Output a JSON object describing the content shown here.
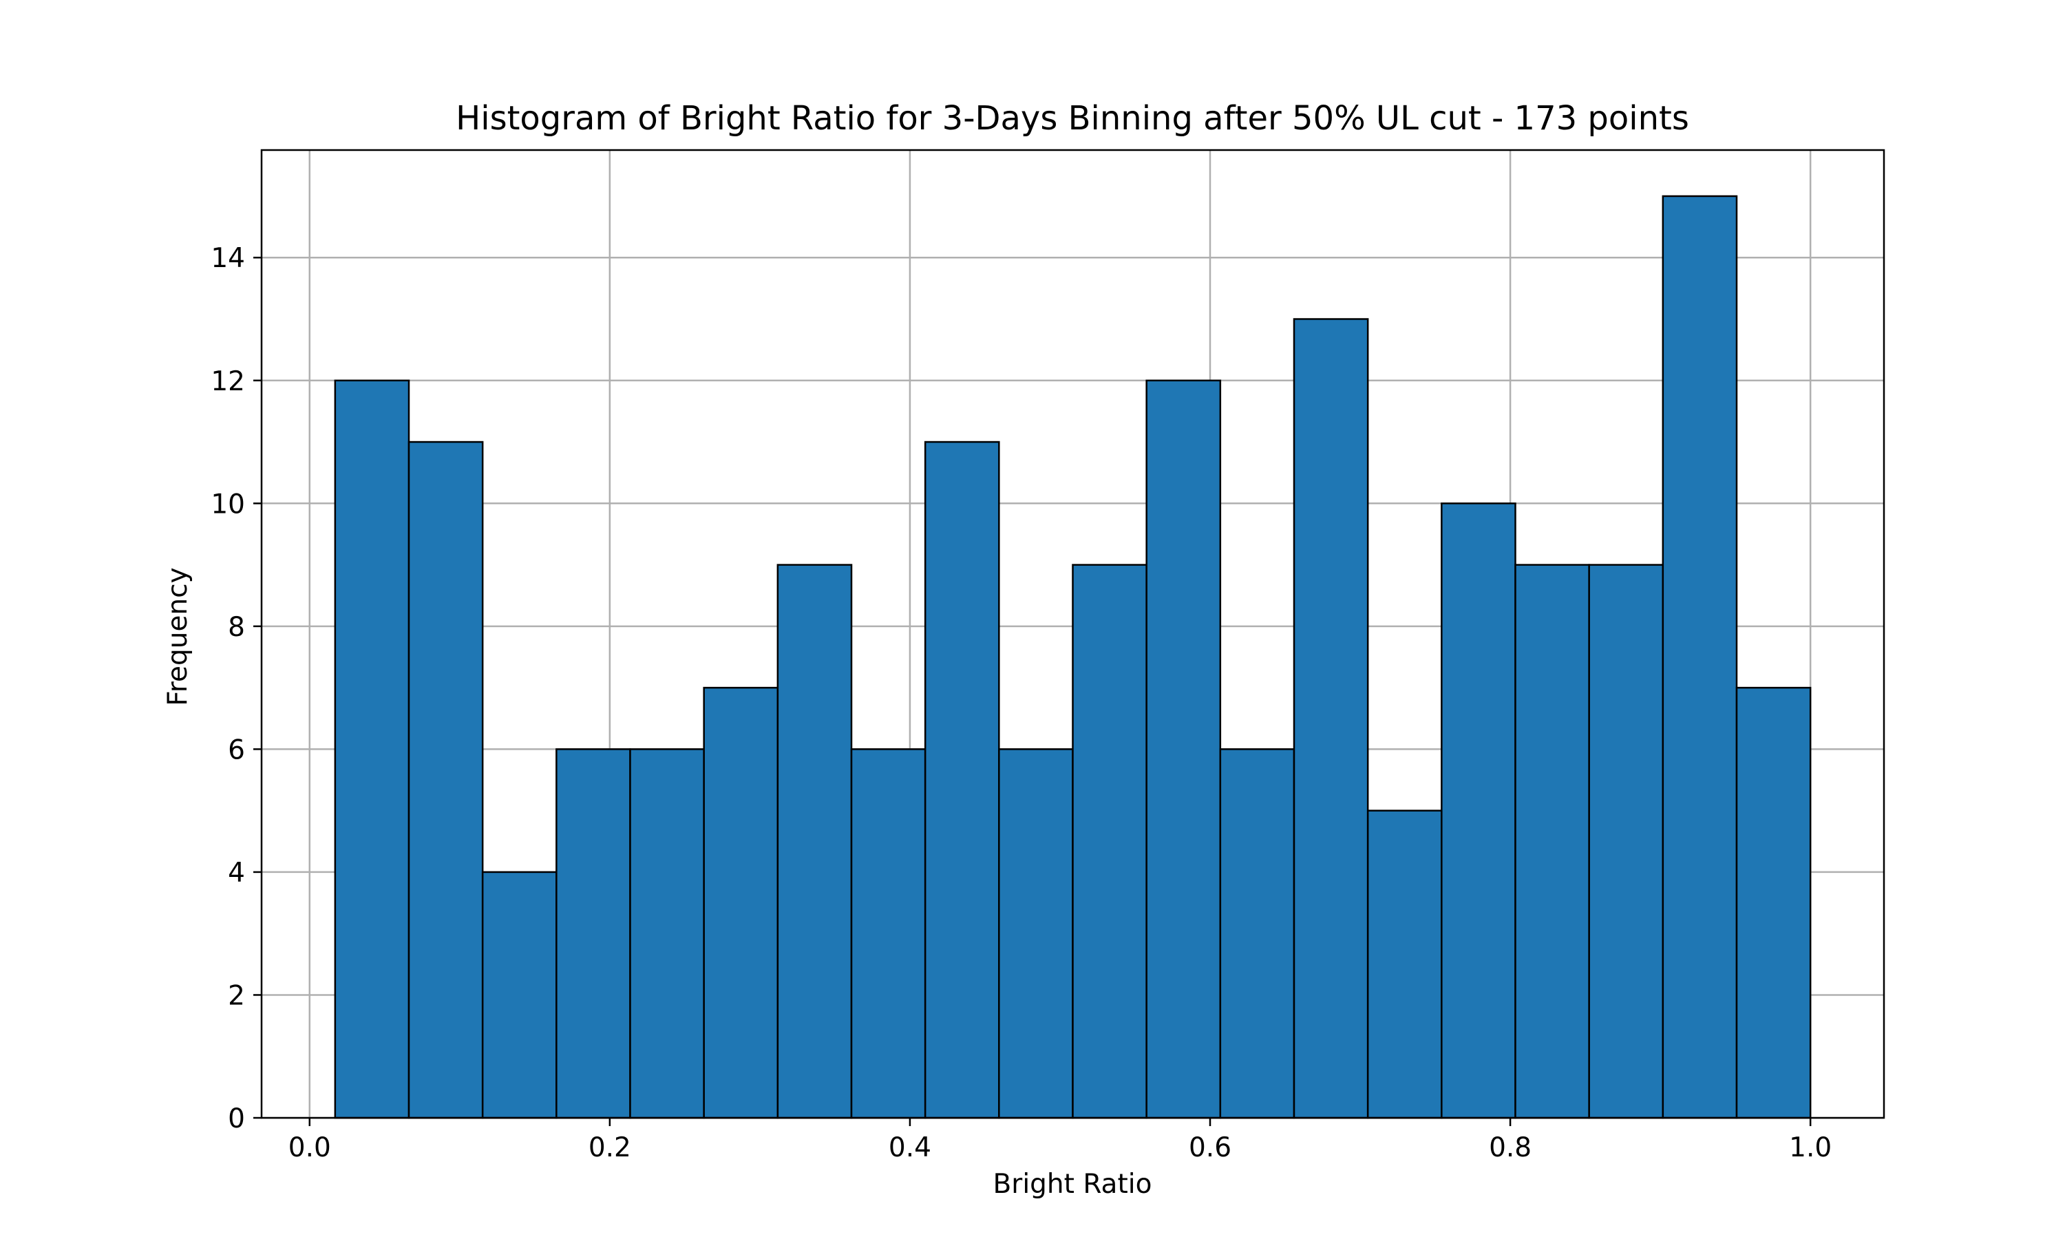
{
  "chart_data": {
    "type": "bar",
    "title": "Histogram of Bright Ratio for 3-Days Binning after 50% UL cut - 173 points",
    "xlabel": "Bright Ratio",
    "ylabel": "Frequency",
    "xlim": [
      -0.032,
      1.049
    ],
    "ylim": [
      0,
      15.75
    ],
    "grid": true,
    "xticks": [
      {
        "value": 0.0,
        "label": "0.0"
      },
      {
        "value": 0.2,
        "label": "0.2"
      },
      {
        "value": 0.4,
        "label": "0.4"
      },
      {
        "value": 0.6,
        "label": "0.6"
      },
      {
        "value": 0.8,
        "label": "0.8"
      },
      {
        "value": 1.0,
        "label": "1.0"
      }
    ],
    "yticks": [
      {
        "value": 0,
        "label": "0"
      },
      {
        "value": 2,
        "label": "2"
      },
      {
        "value": 4,
        "label": "4"
      },
      {
        "value": 6,
        "label": "6"
      },
      {
        "value": 8,
        "label": "8"
      },
      {
        "value": 10,
        "label": "10"
      },
      {
        "value": 12,
        "label": "12"
      },
      {
        "value": 14,
        "label": "14"
      }
    ],
    "bin_start": 0.017,
    "bin_end": 1.0,
    "values": [
      12,
      11,
      4,
      6,
      6,
      7,
      9,
      6,
      11,
      6,
      9,
      12,
      6,
      13,
      5,
      10,
      9,
      9,
      15,
      7
    ],
    "colors": {
      "bar_fill": "#1f77b4",
      "bar_edge": "#000000",
      "grid": "#b0b0b0",
      "axes": "#000000"
    }
  }
}
